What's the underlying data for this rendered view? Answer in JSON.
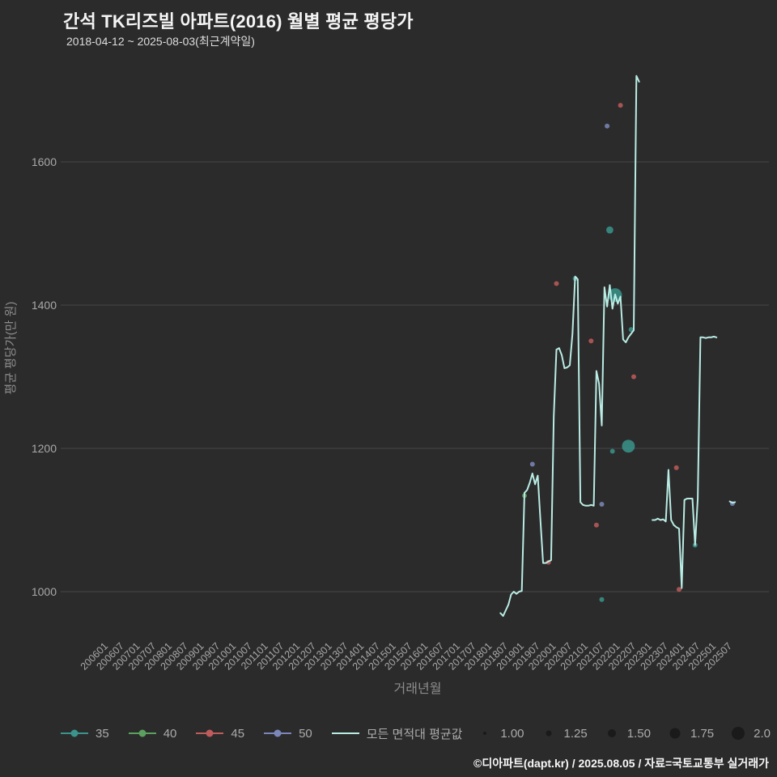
{
  "page": {
    "footer": "©디아파트(dapt.kr) / 2025.08.05 / 자료=국토교통부 실거래가"
  },
  "chart_data": {
    "type": "line+scatter",
    "title": "간석 TK리즈빌 아파트(2016) 월별 평균 평당가",
    "subtitle": "2018-04-12 ~ 2025-08-03(최근계약일)",
    "xlabel": "거래년월",
    "ylabel": "평균 평당가(만 원)",
    "grid": "horizontal",
    "legend_position": "bottom",
    "ylim": [
      940,
      1770
    ],
    "y_ticks": [
      1000,
      1200,
      1400,
      1600
    ],
    "x_ticks": [
      "200601",
      "200607",
      "200701",
      "200707",
      "200801",
      "200807",
      "200901",
      "200907",
      "201001",
      "201007",
      "201101",
      "201107",
      "201201",
      "201207",
      "201301",
      "201307",
      "201401",
      "201407",
      "201501",
      "201507",
      "201601",
      "201607",
      "201701",
      "201707",
      "201801",
      "201807",
      "201901",
      "201907",
      "202001",
      "202007",
      "202101",
      "202107",
      "202201",
      "202207",
      "202301",
      "202307",
      "202401",
      "202407",
      "202501",
      "202507"
    ],
    "colors": {
      "background": "#2b2b2b",
      "grid": "#474747",
      "tick_text": "#a8a8a8",
      "axis_title_text": "#8d8d8d",
      "legend_text": "#ababab",
      "size_dot": "#1a1a1a"
    },
    "line_series": {
      "name": "모든 면적대 평균값",
      "color": "#b9ece4",
      "segments": [
        [
          [
            "2018-04",
            970
          ],
          [
            "2018-05",
            966
          ],
          [
            "2018-06",
            974
          ],
          [
            "2018-07",
            982
          ],
          [
            "2018-08",
            996
          ],
          [
            "2018-09",
            1000
          ],
          [
            "2018-10",
            997
          ],
          [
            "2018-11",
            1000
          ],
          [
            "2018-12",
            1001
          ],
          [
            "2019-01",
            1138
          ],
          [
            "2019-02",
            1142
          ],
          [
            "2019-03",
            1152
          ],
          [
            "2019-04",
            1165
          ],
          [
            "2019-05",
            1150
          ],
          [
            "2019-06",
            1162
          ],
          [
            "2019-07",
            1100
          ],
          [
            "2019-08",
            1040
          ],
          [
            "2019-09",
            1040
          ],
          [
            "2019-10",
            1042
          ],
          [
            "2019-11",
            1044
          ],
          [
            "2019-12",
            1245
          ],
          [
            "2020-01",
            1338
          ],
          [
            "2020-02",
            1340
          ],
          [
            "2020-03",
            1330
          ],
          [
            "2020-04",
            1312
          ],
          [
            "2020-05",
            1313
          ],
          [
            "2020-06",
            1316
          ],
          [
            "2020-07",
            1360
          ],
          [
            "2020-08",
            1440
          ],
          [
            "2020-09",
            1436
          ],
          [
            "2020-10",
            1125
          ],
          [
            "2020-11",
            1121
          ],
          [
            "2020-12",
            1120
          ],
          [
            "2021-01",
            1120
          ],
          [
            "2021-02",
            1121
          ],
          [
            "2021-03",
            1120
          ],
          [
            "2021-04",
            1308
          ],
          [
            "2021-05",
            1290
          ],
          [
            "2021-06",
            1232
          ],
          [
            "2021-07",
            1425
          ],
          [
            "2021-08",
            1398
          ],
          [
            "2021-09",
            1428
          ],
          [
            "2021-10",
            1395
          ],
          [
            "2021-11",
            1415
          ],
          [
            "2021-12",
            1402
          ],
          [
            "2022-01",
            1412
          ],
          [
            "2022-02",
            1352
          ],
          [
            "2022-03",
            1348
          ],
          [
            "2022-04",
            1355
          ],
          [
            "2022-05",
            1360
          ],
          [
            "2022-06",
            1365
          ],
          [
            "2022-07",
            1720
          ],
          [
            "2022-08",
            1712
          ]
        ],
        [
          [
            "2023-01",
            1100
          ],
          [
            "2023-02",
            1100
          ],
          [
            "2023-03",
            1102
          ],
          [
            "2023-04",
            1100
          ],
          [
            "2023-05",
            1101
          ],
          [
            "2023-06",
            1098
          ],
          [
            "2023-07",
            1170
          ],
          [
            "2023-08",
            1100
          ],
          [
            "2023-09",
            1093
          ],
          [
            "2023-10",
            1090
          ],
          [
            "2023-11",
            1088
          ],
          [
            "2023-12",
            1005
          ],
          [
            "2024-01",
            1128
          ],
          [
            "2024-02",
            1130
          ],
          [
            "2024-03",
            1130
          ],
          [
            "2024-04",
            1130
          ],
          [
            "2024-05",
            1065
          ],
          [
            "2024-06",
            1130
          ],
          [
            "2024-07",
            1355
          ],
          [
            "2024-08",
            1355
          ],
          [
            "2024-09",
            1354
          ],
          [
            "2024-10",
            1355
          ],
          [
            "2024-11",
            1355
          ],
          [
            "2024-12",
            1356
          ],
          [
            "2025-01",
            1355
          ]
        ],
        [
          [
            "2025-06",
            1126
          ],
          [
            "2025-07",
            1124
          ],
          [
            "2025-08",
            1125
          ]
        ]
      ]
    },
    "scatter_series": [
      {
        "name": "35",
        "color": "#3a948c",
        "points": [
          [
            "2020-08",
            1437,
            1
          ],
          [
            "2021-06",
            989,
            1
          ],
          [
            "2021-09",
            1505,
            1.25
          ],
          [
            "2021-10",
            1196,
            1
          ],
          [
            "2021-11",
            1414,
            2
          ],
          [
            "2022-04",
            1203,
            1.9
          ],
          [
            "2022-05",
            1366,
            1
          ],
          [
            "2024-05",
            1065,
            1
          ]
        ]
      },
      {
        "name": "40",
        "color": "#5ba05f",
        "points": [
          [
            "2019-01",
            1134,
            1
          ]
        ]
      },
      {
        "name": "45",
        "color": "#bf5b5b",
        "points": [
          [
            "2019-10",
            1041,
            1
          ],
          [
            "2020-01",
            1430,
            1
          ],
          [
            "2021-02",
            1350,
            1
          ],
          [
            "2021-04",
            1093,
            1
          ],
          [
            "2022-01",
            1679,
            1
          ],
          [
            "2022-06",
            1300,
            1
          ],
          [
            "2023-10",
            1173,
            1
          ],
          [
            "2023-11",
            1003,
            1
          ]
        ]
      },
      {
        "name": "50",
        "color": "#7b87b8",
        "points": [
          [
            "2019-04",
            1178,
            1
          ],
          [
            "2021-06",
            1122,
            1
          ],
          [
            "2021-08",
            1650,
            1
          ],
          [
            "2025-07",
            1123,
            1
          ]
        ]
      }
    ],
    "size_legend": [
      {
        "label": "1.00",
        "size": 1
      },
      {
        "label": "1.25",
        "size": 1.25
      },
      {
        "label": "1.50",
        "size": 1.5
      },
      {
        "label": "1.75",
        "size": 1.75
      },
      {
        "label": "2.0",
        "size": 2
      }
    ]
  }
}
